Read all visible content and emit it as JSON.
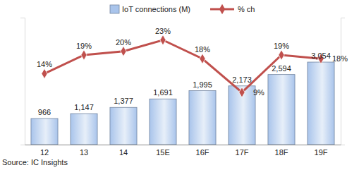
{
  "chart_data": {
    "type": "bar",
    "categories": [
      "12",
      "13",
      "14",
      "15E",
      "16F",
      "17F",
      "18F",
      "19F"
    ],
    "series": [
      {
        "name": "IoT connections (M)",
        "type": "bar",
        "color": "#a9c4eb",
        "values": [
          966,
          1147,
          1377,
          1691,
          1995,
          2173,
          2594,
          3054
        ],
        "value_labels": [
          "966",
          "1,147",
          "1,377",
          "1,691",
          "1,995",
          "2,173",
          "2,594",
          "3,054"
        ]
      },
      {
        "name": "% ch",
        "type": "line",
        "axis": "y2",
        "color": "#c0504d",
        "marker": "diamond",
        "line_style": "solid",
        "values": [
          14,
          19,
          20,
          23,
          18,
          9,
          19,
          18
        ],
        "value_labels": [
          "14%",
          "19%",
          "20%",
          "23%",
          "18%",
          "9%",
          "19%",
          "18%"
        ]
      }
    ],
    "ylim": [
      0,
      4700
    ],
    "y2lim": [
      -5,
      29
    ],
    "grid": false,
    "legend": "top",
    "data_labels": true,
    "tick_labels": "x",
    "source": "Source: IC Insights"
  }
}
